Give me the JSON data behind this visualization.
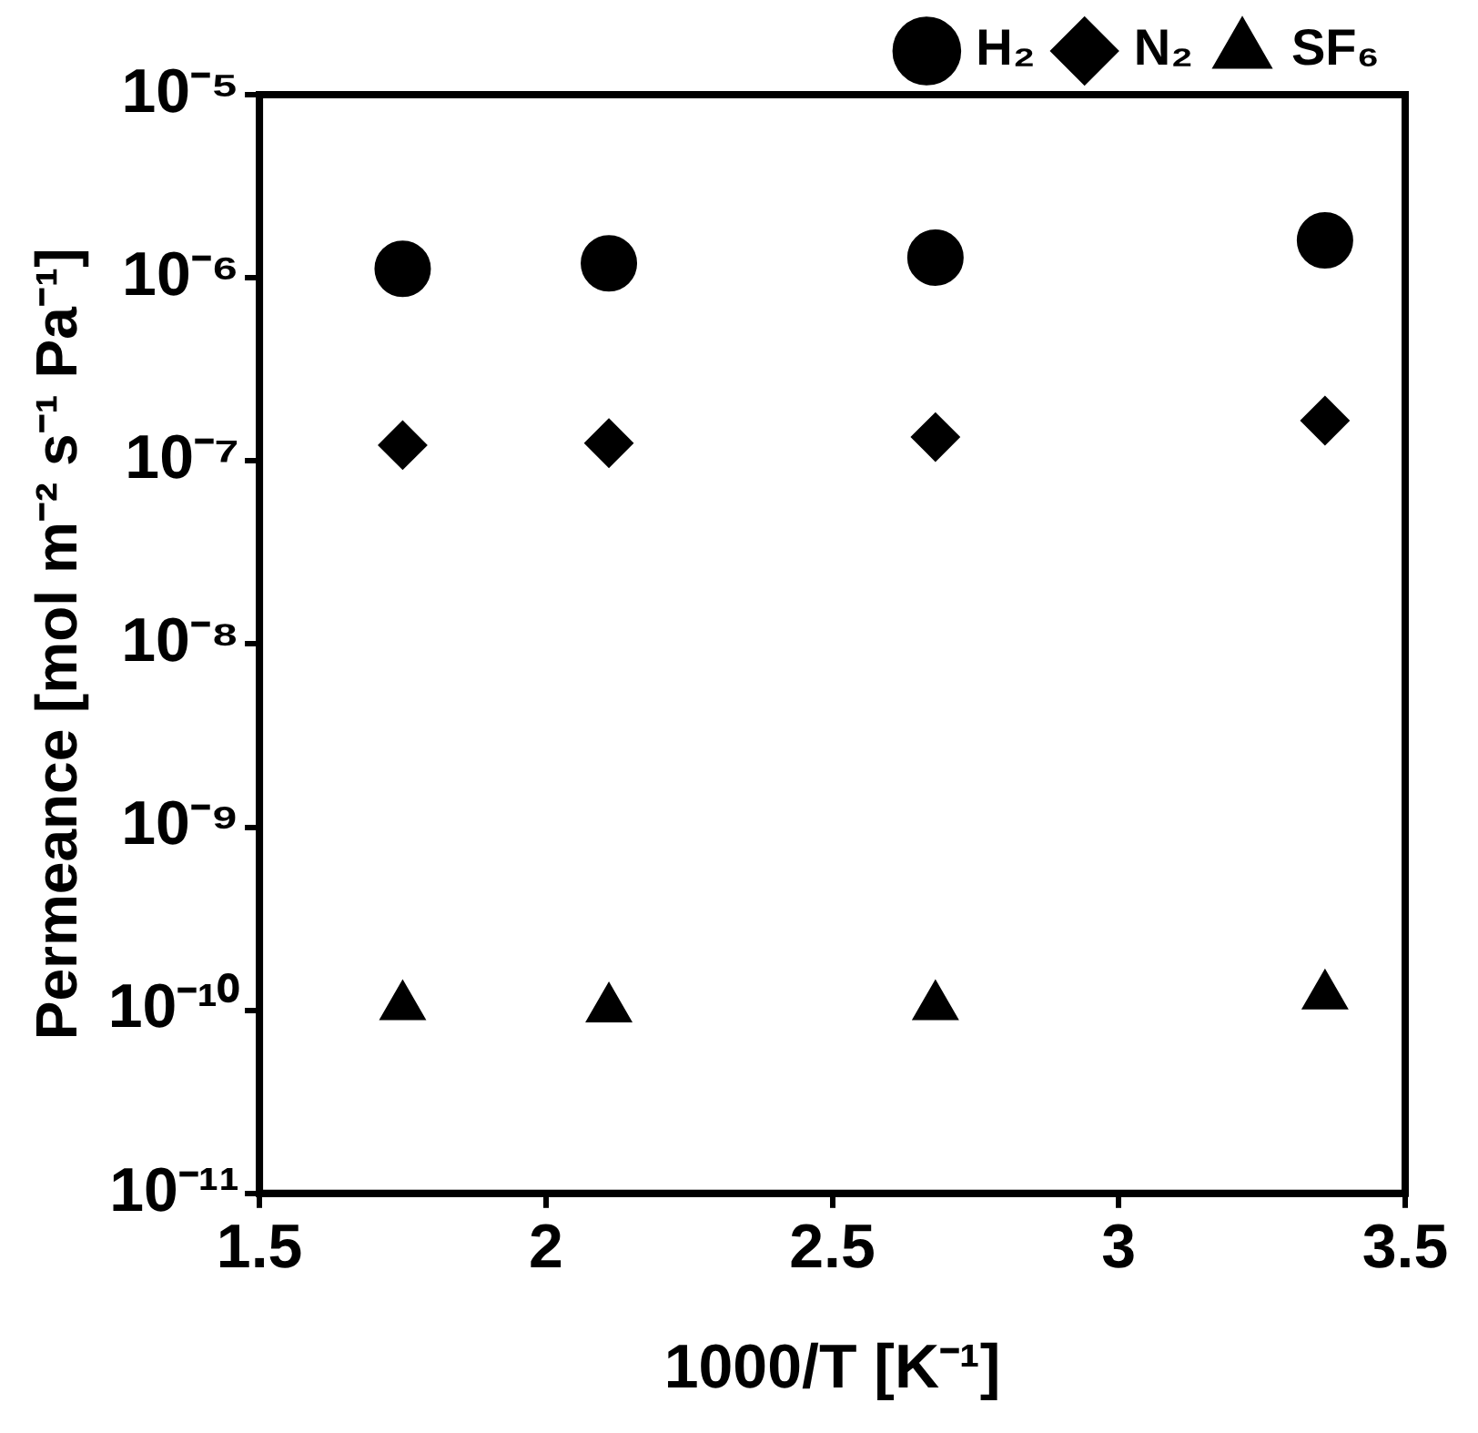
{
  "chart_data": {
    "type": "scatter",
    "xlabel": "1000/T [K⁻¹]",
    "ylabel": "Permeance [mol m⁻² s⁻¹ Pa⁻¹]",
    "log": "y",
    "grid": false,
    "legend": "top right",
    "x": [
      1.75,
      2.11,
      2.68,
      3.36
    ],
    "xlim": [
      1.5,
      3.5
    ],
    "xticks": [
      1.5,
      2,
      2.5,
      3,
      3.5
    ],
    "ylim": [
      1e-11,
      1e-05
    ],
    "yticks": [
      {
        "value": 1e-11,
        "label": "10⁻¹¹"
      },
      {
        "value": 1e-10,
        "label": "10⁻¹⁰"
      },
      {
        "value": 1e-09,
        "label": "10⁻⁹"
      },
      {
        "value": 1e-08,
        "label": "10⁻⁸"
      },
      {
        "value": 1e-07,
        "label": "10⁻⁷"
      },
      {
        "value": 1e-06,
        "label": "10⁻⁶"
      },
      {
        "value": 1e-05,
        "label": "10⁻⁵"
      }
    ],
    "series": [
      {
        "name": "H₂",
        "color": "#000000",
        "marker": "circle",
        "values": [
          1.12e-06,
          1.2e-06,
          1.29e-06,
          1.6e-06
        ]
      },
      {
        "name": "N₂",
        "color": "#000000",
        "marker": "diamond",
        "values": [
          1.22e-07,
          1.25e-07,
          1.35e-07,
          1.66e-07
        ]
      },
      {
        "name": "SF₆",
        "color": "#000000",
        "marker": "triangle",
        "values": [
          1.05e-10,
          1.02e-10,
          1.05e-10,
          1.2e-10
        ]
      }
    ]
  }
}
